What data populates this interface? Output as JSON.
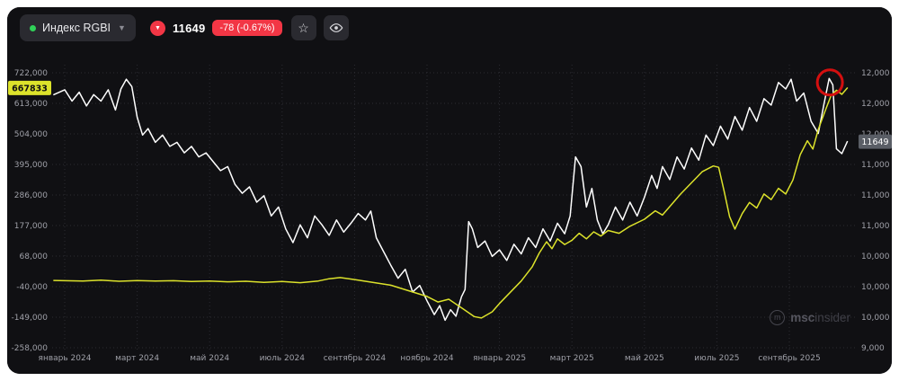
{
  "header": {
    "symbol": "Индекс RGBI",
    "price": "11649",
    "change": "-78 (-0.67%)",
    "symbol_dot_color": "#30d158",
    "down_color": "#f23645"
  },
  "watermark": {
    "icon": "m",
    "bold": "msc",
    "light": "insider"
  },
  "chart_data": {
    "type": "line",
    "title": "Индекс RGBI",
    "grid": true,
    "legend": "none",
    "x_axis": {
      "unit": "months since января 2024",
      "tick_month_positions": [
        0,
        2,
        4,
        6,
        8,
        10,
        12,
        14,
        16,
        18,
        20
      ],
      "tick_labels": [
        "январь 2024",
        "март 2024",
        "май 2024",
        "июль 2024",
        "сентябрь 2024",
        "ноябрь 2024",
        "январь 2025",
        "март 2025",
        "май 2025",
        "июль 2025",
        "сентябрь 2025"
      ]
    },
    "left_axis": {
      "tick_labels": [
        "722,000",
        "613,000",
        "504,000",
        "395,000",
        "286,000",
        "177,000",
        "68,000",
        "-40,000",
        "-149,000",
        "-258,000"
      ],
      "range": {
        "top": 722000,
        "bottom": -258000
      },
      "current_value": 667833,
      "current_value_label": "667833",
      "badge_color": "#dce22b"
    },
    "right_axis": {
      "tick_labels": [
        "12,000",
        "12,000",
        "12,000",
        "11,000",
        "11,000",
        "11,000",
        "10,000",
        "10,000",
        "10,000",
        "9,000"
      ],
      "range": {
        "top": 12500,
        "bottom": 9100
      },
      "current_value": 11649,
      "current_value_label": "11649",
      "badge_color": "#5a5e66"
    },
    "series": [
      {
        "name": "Индекс RGBI",
        "color": "#ffffff",
        "axis": "right",
        "points": [
          [
            -0.3,
            12230
          ],
          [
            0,
            12290
          ],
          [
            0.2,
            12150
          ],
          [
            0.4,
            12260
          ],
          [
            0.6,
            12090
          ],
          [
            0.8,
            12230
          ],
          [
            1.0,
            12150
          ],
          [
            1.2,
            12290
          ],
          [
            1.4,
            12040
          ],
          [
            1.55,
            12300
          ],
          [
            1.7,
            12420
          ],
          [
            1.85,
            12330
          ],
          [
            2.0,
            11950
          ],
          [
            2.15,
            11730
          ],
          [
            2.3,
            11810
          ],
          [
            2.5,
            11640
          ],
          [
            2.7,
            11730
          ],
          [
            2.9,
            11590
          ],
          [
            3.1,
            11640
          ],
          [
            3.3,
            11510
          ],
          [
            3.5,
            11590
          ],
          [
            3.7,
            11460
          ],
          [
            3.9,
            11510
          ],
          [
            4.1,
            11400
          ],
          [
            4.3,
            11290
          ],
          [
            4.5,
            11340
          ],
          [
            4.7,
            11120
          ],
          [
            4.9,
            11010
          ],
          [
            5.1,
            11090
          ],
          [
            5.3,
            10900
          ],
          [
            5.5,
            10980
          ],
          [
            5.7,
            10730
          ],
          [
            5.9,
            10840
          ],
          [
            6.1,
            10570
          ],
          [
            6.3,
            10400
          ],
          [
            6.5,
            10620
          ],
          [
            6.7,
            10460
          ],
          [
            6.9,
            10730
          ],
          [
            7.1,
            10620
          ],
          [
            7.3,
            10490
          ],
          [
            7.5,
            10680
          ],
          [
            7.7,
            10530
          ],
          [
            7.9,
            10640
          ],
          [
            8.1,
            10760
          ],
          [
            8.3,
            10680
          ],
          [
            8.45,
            10790
          ],
          [
            8.6,
            10460
          ],
          [
            8.8,
            10290
          ],
          [
            9.0,
            10120
          ],
          [
            9.2,
            9960
          ],
          [
            9.4,
            10070
          ],
          [
            9.6,
            9790
          ],
          [
            9.8,
            9870
          ],
          [
            10.0,
            9680
          ],
          [
            10.2,
            9510
          ],
          [
            10.35,
            9620
          ],
          [
            10.5,
            9440
          ],
          [
            10.65,
            9570
          ],
          [
            10.8,
            9490
          ],
          [
            10.95,
            9730
          ],
          [
            11.05,
            9820
          ],
          [
            11.15,
            10660
          ],
          [
            11.25,
            10570
          ],
          [
            11.4,
            10340
          ],
          [
            11.6,
            10420
          ],
          [
            11.8,
            10230
          ],
          [
            12.0,
            10310
          ],
          [
            12.2,
            10180
          ],
          [
            12.4,
            10380
          ],
          [
            12.6,
            10260
          ],
          [
            12.8,
            10460
          ],
          [
            13.0,
            10340
          ],
          [
            13.2,
            10570
          ],
          [
            13.4,
            10420
          ],
          [
            13.6,
            10640
          ],
          [
            13.8,
            10510
          ],
          [
            13.95,
            10730
          ],
          [
            14.1,
            11460
          ],
          [
            14.25,
            11340
          ],
          [
            14.4,
            10840
          ],
          [
            14.55,
            11070
          ],
          [
            14.7,
            10680
          ],
          [
            14.85,
            10510
          ],
          [
            15.0,
            10620
          ],
          [
            15.2,
            10840
          ],
          [
            15.4,
            10680
          ],
          [
            15.6,
            10900
          ],
          [
            15.8,
            10730
          ],
          [
            16.0,
            10960
          ],
          [
            16.2,
            11230
          ],
          [
            16.35,
            11070
          ],
          [
            16.5,
            11340
          ],
          [
            16.7,
            11180
          ],
          [
            16.9,
            11460
          ],
          [
            17.1,
            11310
          ],
          [
            17.3,
            11570
          ],
          [
            17.5,
            11420
          ],
          [
            17.7,
            11730
          ],
          [
            17.9,
            11600
          ],
          [
            18.1,
            11840
          ],
          [
            18.3,
            11680
          ],
          [
            18.5,
            11960
          ],
          [
            18.7,
            11790
          ],
          [
            18.9,
            12070
          ],
          [
            19.1,
            11900
          ],
          [
            19.3,
            12180
          ],
          [
            19.5,
            12100
          ],
          [
            19.7,
            12380
          ],
          [
            19.9,
            12300
          ],
          [
            20.05,
            12420
          ],
          [
            20.2,
            12150
          ],
          [
            20.4,
            12250
          ],
          [
            20.6,
            11900
          ],
          [
            20.8,
            11750
          ],
          [
            20.95,
            12100
          ],
          [
            21.1,
            12430
          ],
          [
            21.2,
            12350
          ],
          [
            21.3,
            11560
          ],
          [
            21.45,
            11500
          ],
          [
            21.6,
            11649
          ]
        ]
      },
      {
        "name": "",
        "color": "#dce22b",
        "axis": "left",
        "points": [
          [
            -0.3,
            -18000
          ],
          [
            0.5,
            -20000
          ],
          [
            1,
            -17000
          ],
          [
            1.5,
            -21000
          ],
          [
            2,
            -18500
          ],
          [
            2.5,
            -20500
          ],
          [
            3,
            -19000
          ],
          [
            3.5,
            -22000
          ],
          [
            4,
            -20000
          ],
          [
            4.5,
            -23000
          ],
          [
            5,
            -21000
          ],
          [
            5.5,
            -25000
          ],
          [
            6,
            -22000
          ],
          [
            6.5,
            -26000
          ],
          [
            7,
            -20000
          ],
          [
            7.3,
            -12000
          ],
          [
            7.6,
            -8000
          ],
          [
            8,
            -15000
          ],
          [
            8.5,
            -25000
          ],
          [
            9,
            -35000
          ],
          [
            9.5,
            -55000
          ],
          [
            10,
            -75000
          ],
          [
            10.3,
            -95000
          ],
          [
            10.6,
            -85000
          ],
          [
            11,
            -120000
          ],
          [
            11.3,
            -147000
          ],
          [
            11.5,
            -152000
          ],
          [
            11.8,
            -130000
          ],
          [
            12,
            -100000
          ],
          [
            12.3,
            -60000
          ],
          [
            12.6,
            -20000
          ],
          [
            12.9,
            30000
          ],
          [
            13.1,
            80000
          ],
          [
            13.3,
            120000
          ],
          [
            13.45,
            95000
          ],
          [
            13.6,
            130000
          ],
          [
            13.8,
            110000
          ],
          [
            14,
            125000
          ],
          [
            14.2,
            150000
          ],
          [
            14.4,
            130000
          ],
          [
            14.6,
            155000
          ],
          [
            14.8,
            140000
          ],
          [
            15,
            160000
          ],
          [
            15.3,
            150000
          ],
          [
            15.6,
            175000
          ],
          [
            16,
            200000
          ],
          [
            16.3,
            230000
          ],
          [
            16.5,
            215000
          ],
          [
            16.8,
            260000
          ],
          [
            17,
            290000
          ],
          [
            17.3,
            330000
          ],
          [
            17.6,
            370000
          ],
          [
            17.9,
            390000
          ],
          [
            18.05,
            385000
          ],
          [
            18.2,
            300000
          ],
          [
            18.35,
            210000
          ],
          [
            18.5,
            165000
          ],
          [
            18.7,
            220000
          ],
          [
            18.9,
            260000
          ],
          [
            19.1,
            240000
          ],
          [
            19.3,
            290000
          ],
          [
            19.5,
            270000
          ],
          [
            19.7,
            310000
          ],
          [
            19.9,
            290000
          ],
          [
            20.1,
            340000
          ],
          [
            20.3,
            430000
          ],
          [
            20.5,
            480000
          ],
          [
            20.65,
            450000
          ],
          [
            20.8,
            520000
          ],
          [
            21,
            590000
          ],
          [
            21.15,
            640000
          ],
          [
            21.3,
            660000
          ],
          [
            21.45,
            645000
          ],
          [
            21.6,
            667833
          ]
        ]
      }
    ],
    "annotation_circle": {
      "month": 21.12,
      "value": 12380,
      "axis": "right",
      "color": "#d40f0f",
      "radius": 14
    }
  }
}
